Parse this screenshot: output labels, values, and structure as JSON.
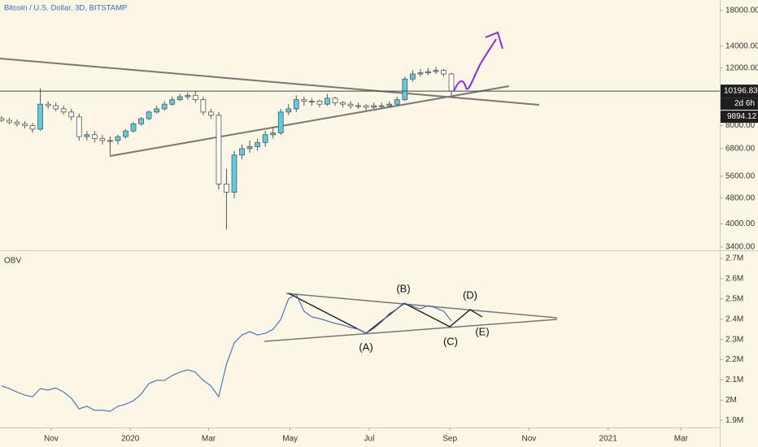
{
  "chart_data": [
    {
      "type": "candlestick",
      "title": "Bitcoin / U.S. Dollar, 3D, BITSTAMP",
      "log_scale": true,
      "open": [
        8400,
        8300,
        8200,
        8100,
        8000,
        7800,
        9300,
        9200,
        9000,
        8800,
        8500,
        7400,
        7500,
        7300,
        7200,
        7200,
        7400,
        7700,
        8100,
        8400,
        8800,
        9000,
        9300,
        9600,
        9800,
        9900,
        9600,
        8800,
        8600,
        5300,
        5000,
        6500,
        6800,
        6900,
        7100,
        7500,
        7600,
        8800,
        9000,
        9600,
        9500,
        9500,
        9300,
        9700,
        9400,
        9300,
        9200,
        9200,
        9100,
        9200,
        9200,
        9300,
        9600,
        11100,
        11500,
        11600,
        11700,
        11800,
        11500
      ],
      "high": [
        8550,
        8450,
        8350,
        8250,
        8150,
        10400,
        9500,
        9400,
        9200,
        9000,
        8700,
        7700,
        7700,
        7500,
        7400,
        7500,
        7800,
        8200,
        8500,
        8900,
        9200,
        9500,
        9800,
        10000,
        10100,
        10200,
        9800,
        9000,
        8800,
        5900,
        6700,
        7000,
        7200,
        7300,
        7700,
        7900,
        9000,
        9300,
        9900,
        9800,
        9700,
        9600,
        10000,
        9800,
        9500,
        9500,
        9400,
        9300,
        9400,
        9400,
        9500,
        9800,
        11300,
        11800,
        11900,
        12000,
        12100,
        11900,
        11600
      ],
      "low": [
        8200,
        8050,
        7950,
        7850,
        7600,
        7700,
        9000,
        8850,
        8650,
        8300,
        7200,
        7200,
        7100,
        7000,
        6500,
        7000,
        7300,
        7600,
        8000,
        8300,
        8700,
        8900,
        9200,
        9500,
        9600,
        9400,
        8600,
        8400,
        5100,
        3850,
        4800,
        6300,
        6600,
        6700,
        6900,
        7300,
        7500,
        8600,
        8800,
        9200,
        9200,
        9100,
        9200,
        9200,
        9100,
        9000,
        9000,
        8900,
        9000,
        9000,
        9100,
        9200,
        9500,
        10900,
        11300,
        11400,
        11500,
        11300,
        9900
      ],
      "close": [
        8300,
        8200,
        8100,
        8000,
        7800,
        9300,
        9200,
        9000,
        8800,
        8500,
        7400,
        7500,
        7300,
        7200,
        7200,
        7400,
        7700,
        8100,
        8400,
        8800,
        9000,
        9300,
        9600,
        9800,
        9900,
        9600,
        8800,
        8600,
        5300,
        5000,
        6500,
        6800,
        6900,
        7100,
        7500,
        7600,
        8800,
        9000,
        9600,
        9500,
        9500,
        9300,
        9700,
        9400,
        9300,
        9200,
        9200,
        9100,
        9200,
        9200,
        9300,
        9600,
        11100,
        11500,
        11600,
        11700,
        11800,
        11500,
        10200
      ],
      "up_color": "#5ccbe6",
      "down_color": "#ffffff",
      "xlim": [
        -0.2,
        92.6
      ],
      "xticks": [
        {
          "value": 6.4,
          "label": "Nov"
        },
        {
          "value": 16.6,
          "label": "2020"
        },
        {
          "value": 26.7,
          "label": "Mar"
        },
        {
          "value": 37.2,
          "label": "May"
        },
        {
          "value": 47.4,
          "label": "Jul"
        },
        {
          "value": 57.8,
          "label": "Sep"
        },
        {
          "value": 68.0,
          "label": "Nov"
        },
        {
          "value": 78.2,
          "label": "2021"
        },
        {
          "value": 87.6,
          "label": "Mar"
        }
      ],
      "ylim": [
        3342,
        19370
      ],
      "yticks": [
        {
          "value": 18000,
          "label": "18000.00"
        },
        {
          "value": 14000,
          "label": "14000.00"
        },
        {
          "value": 12000,
          "label": "12000.00"
        },
        {
          "value": 8000,
          "label": "8000.00"
        },
        {
          "value": 6800,
          "label": "6800.00"
        },
        {
          "value": 5600,
          "label": "5600.00"
        },
        {
          "value": 4800,
          "label": "4800.00"
        },
        {
          "value": 4000,
          "label": "4000.00"
        },
        {
          "value": 3400,
          "label": "3400.00"
        }
      ],
      "last_price": 10196.83,
      "countdown": "2d 6h",
      "price_marker": "9894.12"
    },
    {
      "type": "line",
      "title": "OBV",
      "color": "#3d6fb5",
      "values": [
        2070000,
        2057000,
        2040000,
        2025000,
        2017000,
        2057000,
        2050000,
        2060000,
        2040000,
        2010000,
        1957000,
        1970000,
        1950000,
        1950000,
        1945000,
        1970000,
        1980000,
        1997000,
        2030000,
        2082000,
        2098000,
        2098000,
        2122000,
        2138000,
        2150000,
        2138000,
        2098000,
        2070000,
        2017000,
        2178000,
        2282000,
        2322000,
        2338000,
        2322000,
        2330000,
        2350000,
        2399000,
        2500000,
        2523000,
        2439000,
        2411000,
        2403000,
        2391000,
        2379000,
        2371000,
        2359000,
        2350000,
        2330000,
        2355000,
        2387000,
        2427000,
        2451000,
        2479000,
        2463000,
        2451000,
        2467000,
        2455000,
        2439000,
        2391000
      ],
      "ylim": [
        1869000,
        2732000
      ],
      "yticks": [
        {
          "value": 2700000,
          "label": "2.7M"
        },
        {
          "value": 2600000,
          "label": "2.6M"
        },
        {
          "value": 2500000,
          "label": "2.5M"
        },
        {
          "value": 2400000,
          "label": "2.4M"
        },
        {
          "value": 2300000,
          "label": "2.3M"
        },
        {
          "value": 2200000,
          "label": "2.2M"
        },
        {
          "value": 2100000,
          "label": "2.1M"
        },
        {
          "value": 2000000,
          "label": "2M"
        },
        {
          "value": 1900000,
          "label": "1.9M"
        }
      ],
      "annotations": [
        "(A)",
        "(B)",
        "(C)",
        "(D)",
        "(E)"
      ]
    }
  ]
}
